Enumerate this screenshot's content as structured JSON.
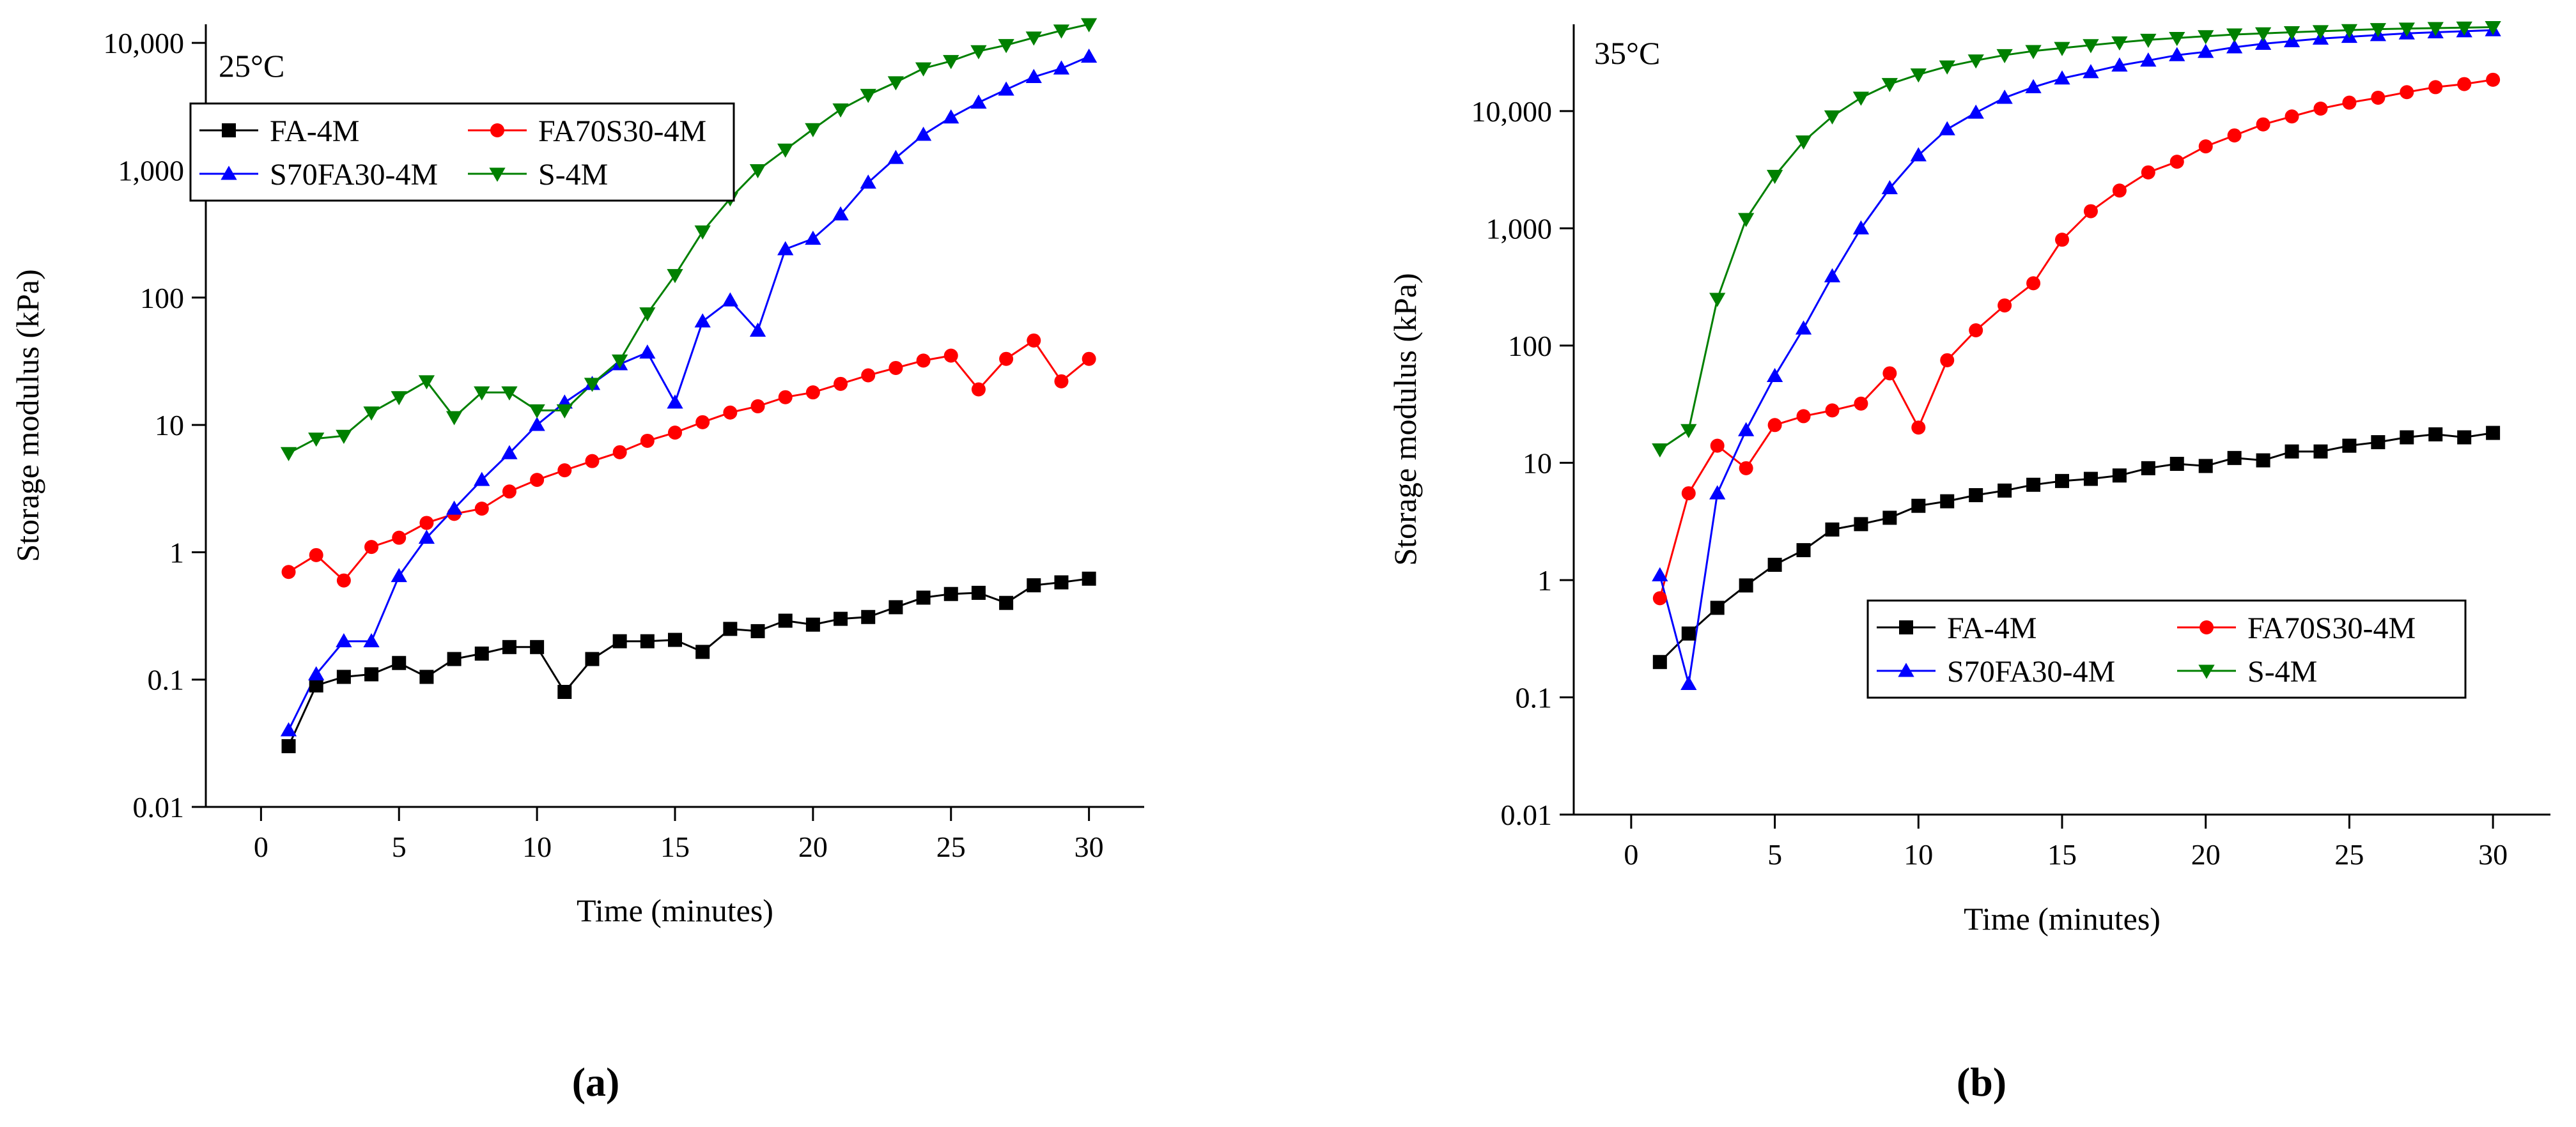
{
  "figure": {
    "panel_labels": [
      "(a)",
      "(b)"
    ]
  },
  "chart_data": [
    {
      "type": "line",
      "panel": "(a)",
      "title": "25°C",
      "xlabel": "Time (minutes)",
      "ylabel": "Storage modulus (kPa)",
      "xlim": [
        -2,
        32
      ],
      "ylim": [
        0.01,
        14000
      ],
      "yscale": "log",
      "xticks": [
        0,
        5,
        10,
        15,
        20,
        25,
        30
      ],
      "xtick_labels": [
        "0",
        "5",
        "10",
        "15",
        "20",
        "25",
        "30"
      ],
      "yticks": [
        0.01,
        0.1,
        1,
        10,
        100,
        1000,
        10000
      ],
      "ytick_labels": [
        "0.01",
        "0.1",
        "1",
        "10",
        "100",
        "1,000",
        "10,000"
      ],
      "legend_position": "top-left",
      "legend": [
        "FA-4M",
        "FA70S30-4M",
        "S70FA30-4M",
        "S-4M"
      ],
      "series": [
        {
          "name": "FA-4M",
          "color": "#000000",
          "marker": "square",
          "x": [
            1,
            2,
            3,
            4,
            5,
            6,
            7,
            8,
            9,
            10,
            11,
            12,
            13,
            14,
            15,
            16,
            17,
            18,
            19,
            20,
            21,
            22,
            23,
            24,
            25,
            26,
            27,
            28,
            29,
            30
          ],
          "values": [
            0.03,
            0.09,
            0.105,
            0.11,
            0.135,
            0.105,
            0.145,
            0.16,
            0.18,
            0.18,
            0.08,
            0.145,
            0.2,
            0.2,
            0.205,
            0.165,
            0.25,
            0.24,
            0.29,
            0.27,
            0.3,
            0.31,
            0.37,
            0.44,
            0.47,
            0.48,
            0.4,
            0.55,
            0.58,
            0.62
          ]
        },
        {
          "name": "FA70S30-4M",
          "color": "#ff0000",
          "marker": "circle",
          "x": [
            1,
            2,
            3,
            4,
            5,
            6,
            7,
            8,
            9,
            10,
            11,
            12,
            13,
            14,
            15,
            16,
            17,
            18,
            19,
            20,
            21,
            22,
            23,
            24,
            25,
            26,
            27,
            28,
            29,
            30
          ],
          "values": [
            0.7,
            0.95,
            0.6,
            1.1,
            1.3,
            1.7,
            2.0,
            2.2,
            3.0,
            3.7,
            4.4,
            5.2,
            6.1,
            7.5,
            8.7,
            10.5,
            12.5,
            14.0,
            16.5,
            18.0,
            21.0,
            24.5,
            28.0,
            32.0,
            35.0,
            19.0,
            33.0,
            46.0,
            22.0,
            33.0
          ]
        },
        {
          "name": "S70FA30-4M",
          "color": "#0000ff",
          "marker": "triangle-up",
          "x": [
            1,
            2,
            3,
            4,
            5,
            6,
            7,
            8,
            9,
            10,
            11,
            12,
            13,
            14,
            15,
            16,
            17,
            18,
            19,
            20,
            21,
            22,
            23,
            24,
            25,
            26,
            27,
            28,
            29,
            30
          ],
          "values": [
            0.04,
            0.11,
            0.2,
            0.2,
            0.65,
            1.3,
            2.2,
            3.7,
            6.0,
            10.0,
            15.0,
            21.0,
            30.0,
            37.0,
            15.0,
            65.0,
            95.0,
            55.0,
            240.0,
            290.0,
            450.0,
            800.0,
            1250.0,
            1900.0,
            2600.0,
            3400.0,
            4300.0,
            5400.0,
            6300.0,
            7800.0
          ]
        },
        {
          "name": "S-4M",
          "color": "#008000",
          "marker": "triangle-down",
          "x": [
            1,
            2,
            3,
            4,
            5,
            6,
            7,
            8,
            9,
            10,
            11,
            12,
            13,
            14,
            15,
            16,
            17,
            18,
            19,
            20,
            21,
            22,
            23,
            24,
            25,
            26,
            27,
            28,
            29,
            30
          ],
          "values": [
            6.0,
            7.8,
            8.2,
            12.5,
            16.5,
            22.0,
            11.5,
            18.0,
            18.0,
            13.0,
            13.0,
            21.0,
            32.0,
            75.0,
            150.0,
            330.0,
            600.0,
            1000.0,
            1450.0,
            2100.0,
            3000.0,
            3900.0,
            4900.0,
            6300.0,
            7200.0,
            8600.0,
            9600.0,
            11000.0,
            12500.0,
            14000.0
          ]
        }
      ]
    },
    {
      "type": "line",
      "panel": "(b)",
      "title": "35°C",
      "xlabel": "Time (minutes)",
      "ylabel": "Storage modulus (kPa)",
      "xlim": [
        -2,
        32
      ],
      "ylim": [
        0.01,
        55000
      ],
      "yscale": "log",
      "xticks": [
        0,
        5,
        10,
        15,
        20,
        25,
        30
      ],
      "xtick_labels": [
        "0",
        "5",
        "10",
        "15",
        "20",
        "25",
        "30"
      ],
      "yticks": [
        0.01,
        0.1,
        1,
        10,
        100,
        1000,
        10000
      ],
      "ytick_labels": [
        "0.01",
        "0.1",
        "1",
        "10",
        "100",
        "1,000",
        "10,000"
      ],
      "legend_position": "lower-right",
      "legend": [
        "FA-4M",
        "FA70S30-4M",
        "S70FA30-4M",
        "S-4M"
      ],
      "series": [
        {
          "name": "FA-4M",
          "color": "#000000",
          "marker": "square",
          "x": [
            1,
            2,
            3,
            4,
            5,
            6,
            7,
            8,
            9,
            10,
            11,
            12,
            13,
            14,
            15,
            16,
            17,
            18,
            19,
            20,
            21,
            22,
            23,
            24,
            25,
            26,
            27,
            28,
            29,
            30
          ],
          "values": [
            0.2,
            0.35,
            0.58,
            0.9,
            1.35,
            1.8,
            2.7,
            3.0,
            3.4,
            4.3,
            4.7,
            5.3,
            5.8,
            6.5,
            7.0,
            7.3,
            7.8,
            9.0,
            9.8,
            9.4,
            11.0,
            10.5,
            12.5,
            12.5,
            14.0,
            15.0,
            16.5,
            17.5,
            16.5,
            18.0
          ]
        },
        {
          "name": "FA70S30-4M",
          "color": "#ff0000",
          "marker": "circle",
          "x": [
            1,
            2,
            3,
            4,
            5,
            6,
            7,
            8,
            9,
            10,
            11,
            12,
            13,
            14,
            15,
            16,
            17,
            18,
            19,
            20,
            21,
            22,
            23,
            24,
            25,
            26,
            27,
            28,
            29,
            30
          ],
          "values": [
            0.7,
            5.5,
            14.0,
            9.0,
            21.0,
            25.0,
            28.0,
            32.0,
            58.0,
            20.0,
            75.0,
            135.0,
            220.0,
            340.0,
            800.0,
            1400.0,
            2100.0,
            3000.0,
            3700.0,
            5000.0,
            6200.0,
            7700.0,
            9000.0,
            10500.0,
            11800.0,
            13000.0,
            14500.0,
            16000.0,
            17000.0,
            18500.0
          ]
        },
        {
          "name": "S70FA30-4M",
          "color": "#0000ff",
          "marker": "triangle-up",
          "x": [
            1,
            2,
            3,
            4,
            5,
            6,
            7,
            8,
            9,
            10,
            11,
            12,
            13,
            14,
            15,
            16,
            17,
            18,
            19,
            20,
            21,
            22,
            23,
            24,
            25,
            26,
            27,
            28,
            29,
            30
          ],
          "values": [
            1.1,
            0.13,
            5.5,
            19.0,
            55.0,
            140.0,
            390.0,
            1000.0,
            2200.0,
            4200.0,
            7000.0,
            9700.0,
            13000.0,
            16000.0,
            19000.0,
            21500.0,
            24500.0,
            27000.0,
            30000.0,
            32000.0,
            35000.0,
            37500.0,
            39500.0,
            41500.0,
            43000.0,
            44500.0,
            46000.0,
            47000.0,
            48000.0,
            49000.0
          ]
        },
        {
          "name": "S-4M",
          "color": "#008000",
          "marker": "triangle-down",
          "x": [
            1,
            2,
            3,
            4,
            5,
            6,
            7,
            8,
            9,
            10,
            11,
            12,
            13,
            14,
            15,
            16,
            17,
            18,
            19,
            20,
            21,
            22,
            23,
            24,
            25,
            26,
            27,
            28,
            29,
            30
          ],
          "values": [
            13.0,
            19.0,
            250.0,
            1200.0,
            2800.0,
            5500.0,
            9000.0,
            13000.0,
            17000.0,
            20500.0,
            24000.0,
            27000.0,
            30000.0,
            32500.0,
            34500.0,
            36500.0,
            38500.0,
            40500.0,
            42000.0,
            43500.0,
            45000.0,
            46000.0,
            47000.0,
            48000.0,
            49000.0,
            50000.0,
            50500.0,
            51000.0,
            51500.0,
            52000.0
          ]
        }
      ]
    }
  ]
}
